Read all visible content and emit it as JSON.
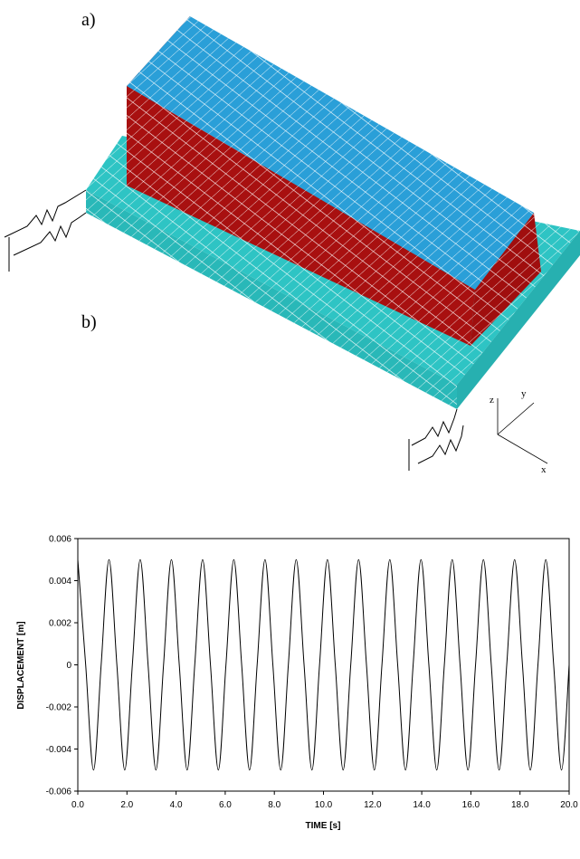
{
  "figure": {
    "labels": [
      "a)",
      "b)"
    ],
    "axis_names": [
      "z",
      "y",
      "x"
    ]
  },
  "chart_data": {
    "type": "line",
    "x_label": "TIME [s]",
    "y_label": "DISPLACEMENT [m]",
    "xlim": [
      0,
      20
    ],
    "ylim": [
      -0.006,
      0.006
    ],
    "xticks": [
      {
        "value": 0,
        "label": "0.0"
      },
      {
        "value": 2,
        "label": "2.0"
      },
      {
        "value": 4,
        "label": "4.0"
      },
      {
        "value": 6,
        "label": "6.0"
      },
      {
        "value": 8,
        "label": "8.0"
      },
      {
        "value": 10,
        "label": "10.0"
      },
      {
        "value": 12,
        "label": "12.0"
      },
      {
        "value": 14,
        "label": "14.0"
      },
      {
        "value": 16,
        "label": "16.0"
      },
      {
        "value": 18,
        "label": "18.0"
      },
      {
        "value": 20,
        "label": "20.0"
      }
    ],
    "yticks": [
      -0.006,
      -0.004,
      -0.002,
      0,
      0.002,
      0.004,
      0.006
    ],
    "color": "#000000",
    "x": [
      0,
      0.32,
      0.64,
      0.95,
      1.27,
      1.59,
      1.91,
      2.22,
      2.54,
      2.86,
      3.18,
      3.49,
      3.81,
      4.13,
      4.45,
      4.76,
      5.08,
      5.4,
      5.72,
      6.03,
      6.35,
      6.67,
      6.99,
      7.3,
      7.62,
      7.94,
      8.26,
      8.57,
      8.89,
      9.21,
      9.53,
      9.84,
      10.16,
      10.48,
      10.8,
      11.11,
      11.43,
      11.75,
      12.07,
      12.38,
      12.7,
      13.02,
      13.34,
      13.65,
      13.97,
      14.29,
      14.61,
      14.92,
      15.24,
      15.56,
      15.88,
      16.19,
      16.51,
      16.83,
      17.15,
      17.46,
      17.78,
      18.1,
      18.42,
      18.73,
      19.05,
      19.37,
      19.69,
      20
    ],
    "values": [
      0.005,
      0,
      -0.005,
      0,
      0.005,
      0,
      -0.005,
      0,
      0.005,
      0,
      -0.005,
      0,
      0.005,
      0,
      -0.005,
      0,
      0.005,
      0,
      -0.005,
      0,
      0.005,
      0,
      -0.005,
      0,
      0.005,
      0,
      -0.005,
      0,
      0.005,
      0,
      -0.005,
      0,
      0.005,
      0,
      -0.005,
      0,
      0.005,
      0,
      -0.005,
      0,
      0.005,
      0,
      -0.005,
      0,
      0.005,
      0,
      -0.005,
      0,
      0.005,
      0,
      -0.005,
      0,
      0.005,
      0,
      -0.005,
      0,
      0.005,
      0,
      -0.005,
      0,
      0.005,
      0,
      -0.005,
      0
    ]
  }
}
